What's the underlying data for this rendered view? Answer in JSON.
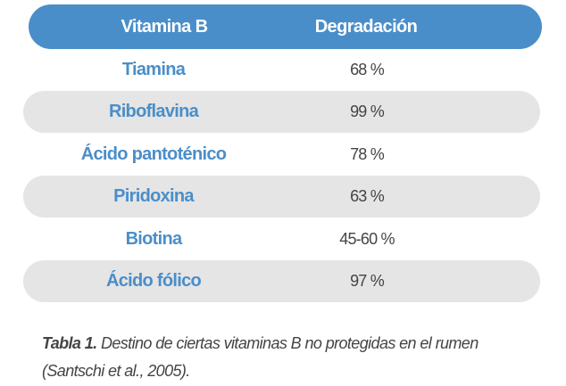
{
  "table": {
    "headers": [
      "Vitamina B",
      "Degradación"
    ],
    "rows": [
      {
        "name": "Tiamina",
        "value": "68 %"
      },
      {
        "name": "Riboflavina",
        "value": "99 %"
      },
      {
        "name": "Ácido pantoténico",
        "value": "78 %"
      },
      {
        "name": "Piridoxina",
        "value": "63 %"
      },
      {
        "name": "Biotina",
        "value": "45-60 %"
      },
      {
        "name": "Ácido fólico",
        "value": "97 %"
      }
    ]
  },
  "caption": {
    "label": "Tabla 1.",
    "text": " Destino de ciertas vitaminas B no protegidas en el rumen (Santschi et al., 2005)."
  },
  "colors": {
    "accent": "#4a8ec9",
    "stripe": "#e5e5e5"
  }
}
